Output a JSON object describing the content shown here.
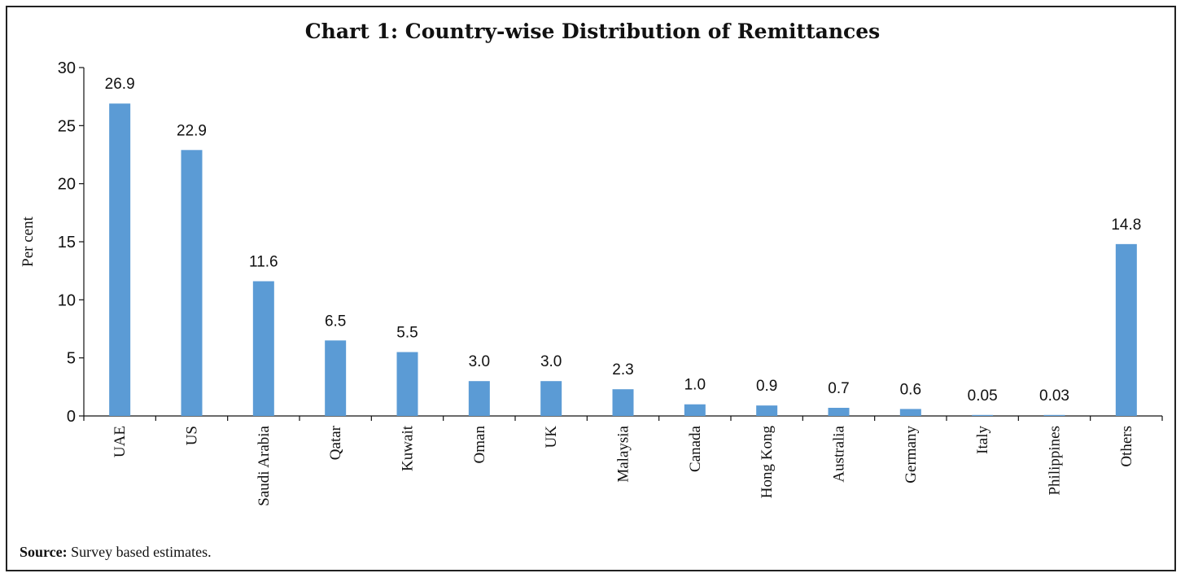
{
  "chart_data": {
    "type": "bar",
    "title": "Chart 1: Country-wise Distribution of Remittances",
    "ylabel": "Per cent",
    "xlabel": "",
    "ylim": [
      0,
      30
    ],
    "yticks": [
      0,
      5,
      10,
      15,
      20,
      25,
      30
    ],
    "categories": [
      "UAE",
      "US",
      "Saudi Arabia",
      "Qatar",
      "Kuwait",
      "Oman",
      "UK",
      "Malaysia",
      "Canada",
      "Hong Kong",
      "Australia",
      "Germany",
      "Italy",
      "Philippines",
      "Others"
    ],
    "values": [
      26.9,
      22.9,
      11.6,
      6.5,
      5.5,
      3.0,
      3.0,
      2.3,
      1.0,
      0.9,
      0.7,
      0.6,
      0.05,
      0.03,
      14.8
    ],
    "value_labels": [
      "26.9",
      "22.9",
      "11.6",
      "6.5",
      "5.5",
      "3.0",
      "3.0",
      "2.3",
      "1.0",
      "0.9",
      "0.7",
      "0.6",
      "0.05",
      "0.03",
      "14.8"
    ],
    "bar_color": "#5b9bd5",
    "grid": false,
    "legend": "none"
  },
  "source": {
    "label": "Source:",
    "text": " Survey based estimates."
  }
}
